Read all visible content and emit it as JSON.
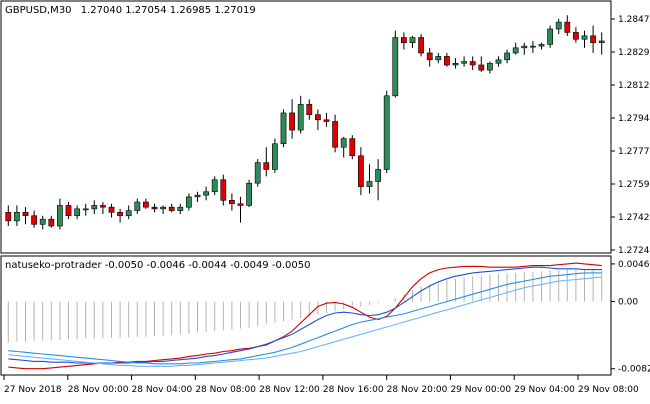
{
  "header": {
    "symbol_label": "GBPUSD,M30",
    "ohlc_label": "1.27040 1.27054 1.26985 1.27019"
  },
  "indicator": {
    "label": "natuseko-protrader -0.0050 -0.0046 -0.0044 -0.0049 -0.0050"
  },
  "colors": {
    "background": "#ffffff",
    "frame": "#000000",
    "bull_candle": "#2e8b57",
    "bear_candle": "#e00000",
    "wick": "#000000",
    "hist": "#b4b4b4",
    "line_red": "#d00000",
    "line_blue1": "#1f4fd8",
    "line_blue2": "#2a8fe0",
    "line_blue3": "#6cb4ff"
  },
  "chart_data": [
    {
      "type": "candlestick",
      "series_id": "price",
      "ylim": [
        1.2715,
        1.2858
      ],
      "y_ticks": [
        "1.28476",
        "1.28295",
        "1.28120",
        "1.27945",
        "1.27770",
        "1.27595",
        "1.27420",
        "1.27245"
      ],
      "x_ticks": [
        "27 Nov 2018",
        "28 Nov 00:00",
        "28 Nov 04:00",
        "28 Nov 08:00",
        "28 Nov 12:00",
        "28 Nov 16:00",
        "28 Nov 20:00",
        "29 Nov 00:00",
        "29 Nov 04:00",
        "29 Nov 08:00"
      ],
      "candles": [
        [
          1.2737,
          1.2741,
          1.2729,
          1.2732
        ],
        [
          1.2732,
          1.2741,
          1.2729,
          1.2737
        ],
        [
          1.2737,
          1.274,
          1.273,
          1.2735
        ],
        [
          1.2735,
          1.2738,
          1.2728,
          1.273
        ],
        [
          1.273,
          1.2735,
          1.2727,
          1.2733
        ],
        [
          1.2733,
          1.2735,
          1.2728,
          1.2729
        ],
        [
          1.2729,
          1.2745,
          1.2727,
          1.2741
        ],
        [
          1.2741,
          1.2743,
          1.2733,
          1.2735
        ],
        [
          1.2735,
          1.2741,
          1.2733,
          1.2739
        ],
        [
          1.2739,
          1.2742,
          1.2735,
          1.2739
        ],
        [
          1.2739,
          1.2744,
          1.2736,
          1.2741
        ],
        [
          1.2741,
          1.2743,
          1.2736,
          1.274
        ],
        [
          1.274,
          1.2742,
          1.2734,
          1.2737
        ],
        [
          1.2737,
          1.2739,
          1.2731,
          1.2735
        ],
        [
          1.2735,
          1.2741,
          1.2733,
          1.2738
        ],
        [
          1.2738,
          1.2745,
          1.2736,
          1.2743
        ],
        [
          1.2743,
          1.2745,
          1.2739,
          1.274
        ],
        [
          1.274,
          1.2742,
          1.2737,
          1.2739
        ],
        [
          1.2739,
          1.2741,
          1.2736,
          1.274
        ],
        [
          1.274,
          1.2742,
          1.2737,
          1.2738
        ],
        [
          1.2738,
          1.2742,
          1.2736,
          1.274
        ],
        [
          1.274,
          1.2748,
          1.2738,
          1.2746
        ],
        [
          1.2746,
          1.2749,
          1.2743,
          1.2747
        ],
        [
          1.2747,
          1.2752,
          1.2744,
          1.2749
        ],
        [
          1.2749,
          1.2758,
          1.2747,
          1.2756
        ],
        [
          1.2756,
          1.2759,
          1.2741,
          1.2744
        ],
        [
          1.2744,
          1.2748,
          1.2738,
          1.2742
        ],
        [
          1.2742,
          1.2746,
          1.2731,
          1.2741
        ],
        [
          1.2741,
          1.2756,
          1.274,
          1.2754
        ],
        [
          1.2754,
          1.2768,
          1.2752,
          1.2766
        ],
        [
          1.2766,
          1.2775,
          1.2758,
          1.2762
        ],
        [
          1.2762,
          1.278,
          1.276,
          1.2777
        ],
        [
          1.2777,
          1.2797,
          1.2775,
          1.2795
        ],
        [
          1.2795,
          1.2803,
          1.278,
          1.2785
        ],
        [
          1.2785,
          1.2805,
          1.2783,
          1.28
        ],
        [
          1.28,
          1.2803,
          1.2791,
          1.2794
        ],
        [
          1.2794,
          1.2797,
          1.2785,
          1.2791
        ],
        [
          1.2791,
          1.2795,
          1.2787,
          1.279
        ],
        [
          1.279,
          1.2794,
          1.2772,
          1.2775
        ],
        [
          1.2775,
          1.2781,
          1.2769,
          1.278
        ],
        [
          1.278,
          1.2782,
          1.2768,
          1.277
        ],
        [
          1.277,
          1.2775,
          1.2747,
          1.2752
        ],
        [
          1.2752,
          1.2765,
          1.2748,
          1.2755
        ],
        [
          1.2755,
          1.2768,
          1.2744,
          1.2762
        ],
        [
          1.2762,
          1.2808,
          1.276,
          1.2805
        ],
        [
          1.2805,
          1.2843,
          1.2804,
          1.2839
        ],
        [
          1.2839,
          1.2842,
          1.2832,
          1.2836
        ],
        [
          1.2836,
          1.284,
          1.2833,
          1.2839
        ],
        [
          1.2839,
          1.2841,
          1.2828,
          1.283
        ],
        [
          1.283,
          1.2833,
          1.2822,
          1.2826
        ],
        [
          1.2826,
          1.283,
          1.2824,
          1.2828
        ],
        [
          1.2828,
          1.283,
          1.2822,
          1.2823
        ],
        [
          1.2823,
          1.2827,
          1.2821,
          1.2824
        ],
        [
          1.2824,
          1.2828,
          1.2822,
          1.2825
        ],
        [
          1.2825,
          1.2828,
          1.282,
          1.2823
        ],
        [
          1.2823,
          1.2828,
          1.2819,
          1.282
        ],
        [
          1.282,
          1.2825,
          1.2818,
          1.2824
        ],
        [
          1.2824,
          1.2828,
          1.2822,
          1.2826
        ],
        [
          1.2826,
          1.2832,
          1.2824,
          1.283
        ],
        [
          1.283,
          1.2836,
          1.2829,
          1.2833
        ],
        [
          1.2833,
          1.2836,
          1.2829,
          1.2834
        ],
        [
          1.2834,
          1.2837,
          1.283,
          1.2834
        ],
        [
          1.2834,
          1.2836,
          1.2832,
          1.2835
        ],
        [
          1.2835,
          1.2846,
          1.2833,
          1.2844
        ],
        [
          1.2844,
          1.285,
          1.2841,
          1.2848
        ],
        [
          1.2848,
          1.2852,
          1.284,
          1.2842
        ],
        [
          1.2842,
          1.2845,
          1.2836,
          1.2838
        ],
        [
          1.2838,
          1.2843,
          1.2833,
          1.284
        ],
        [
          1.284,
          1.2846,
          1.283,
          1.2836
        ],
        [
          1.2836,
          1.2842,
          1.2829,
          1.2837
        ]
      ]
    },
    {
      "type": "line",
      "series_id": "indicator",
      "ylim": [
        -0.0086,
        0.0052
      ],
      "y_ticks": [
        {
          "value": 0.0046,
          "label": "0.0046"
        },
        {
          "value": 0.0,
          "label": "0.00"
        },
        {
          "value": -0.0082,
          "label": "-0.0082"
        }
      ],
      "histogram": [
        -0.005,
        -0.0049,
        -0.0049,
        -0.0048,
        -0.0048,
        -0.0047,
        -0.0047,
        -0.0046,
        -0.0046,
        -0.0045,
        -0.0045,
        -0.0045,
        -0.0044,
        -0.0044,
        -0.0044,
        -0.0043,
        -0.0043,
        -0.0042,
        -0.0042,
        -0.0041,
        -0.004,
        -0.0039,
        -0.0038,
        -0.0037,
        -0.0036,
        -0.0035,
        -0.0034,
        -0.0033,
        -0.0032,
        -0.003,
        -0.0028,
        -0.0026,
        -0.0024,
        -0.0022,
        -0.002,
        -0.0018,
        -0.0016,
        -0.0014,
        -0.0012,
        -0.001,
        -0.0008,
        -0.0006,
        -0.0004,
        -0.0002,
        0.0,
        0.0004,
        0.0009,
        0.0014,
        0.0018,
        0.0021,
        0.0024,
        0.0026,
        0.0028,
        0.003,
        0.0031,
        0.0032,
        0.0033,
        0.0034,
        0.0035,
        0.0035,
        0.0036,
        0.0036,
        0.0037,
        0.0038,
        0.0038,
        0.0039,
        0.0039,
        0.004,
        0.004,
        0.004
      ],
      "series": [
        {
          "color_key": "line_red",
          "values": [
            -0.008,
            -0.0081,
            -0.0082,
            -0.0082,
            -0.0082,
            -0.0081,
            -0.008,
            -0.0079,
            -0.0078,
            -0.0077,
            -0.0076,
            -0.0075,
            -0.0075,
            -0.0074,
            -0.0074,
            -0.0073,
            -0.0073,
            -0.0072,
            -0.0071,
            -0.007,
            -0.0069,
            -0.0067,
            -0.0066,
            -0.0064,
            -0.0063,
            -0.0061,
            -0.006,
            -0.0058,
            -0.0057,
            -0.0055,
            -0.0053,
            -0.0048,
            -0.0043,
            -0.0036,
            -0.0026,
            -0.0016,
            -0.0006,
            -0.0002,
            -0.0001,
            -0.0003,
            -0.0007,
            -0.0013,
            -0.0019,
            -0.0022,
            -0.0018,
            -0.0008,
            0.0005,
            0.0018,
            0.0028,
            0.0035,
            0.0039,
            0.0041,
            0.0042,
            0.0043,
            0.0043,
            0.0043,
            0.0042,
            0.0042,
            0.0042,
            0.0042,
            0.0043,
            0.0044,
            0.0044,
            0.0044,
            0.0045,
            0.0046,
            0.0047,
            0.0046,
            0.0045,
            0.0044
          ]
        },
        {
          "color_key": "line_blue1",
          "values": [
            -0.007,
            -0.0071,
            -0.0072,
            -0.0073,
            -0.0073,
            -0.0074,
            -0.0074,
            -0.0074,
            -0.0075,
            -0.0075,
            -0.0075,
            -0.0075,
            -0.0075,
            -0.0075,
            -0.0075,
            -0.0074,
            -0.0074,
            -0.0073,
            -0.0073,
            -0.0072,
            -0.0071,
            -0.007,
            -0.0069,
            -0.0067,
            -0.0066,
            -0.0064,
            -0.0062,
            -0.006,
            -0.0058,
            -0.0055,
            -0.0052,
            -0.0048,
            -0.0044,
            -0.004,
            -0.0034,
            -0.0028,
            -0.0022,
            -0.0017,
            -0.0014,
            -0.0013,
            -0.0014,
            -0.0016,
            -0.0017,
            -0.0016,
            -0.0013,
            -0.0008,
            -0.0001,
            0.0006,
            0.0013,
            0.0019,
            0.0024,
            0.0028,
            0.0031,
            0.0033,
            0.0035,
            0.0036,
            0.0037,
            0.0038,
            0.0039,
            0.004,
            0.0041,
            0.0042,
            0.0042,
            0.0041,
            0.004,
            0.004,
            0.004,
            0.0039,
            0.0039,
            0.0039
          ]
        },
        {
          "color_key": "line_blue2",
          "values": [
            -0.006,
            -0.0061,
            -0.0062,
            -0.0063,
            -0.0064,
            -0.0065,
            -0.0066,
            -0.0067,
            -0.0068,
            -0.0069,
            -0.007,
            -0.0071,
            -0.0072,
            -0.0073,
            -0.0074,
            -0.0075,
            -0.0075,
            -0.0076,
            -0.0076,
            -0.0076,
            -0.0076,
            -0.0075,
            -0.0075,
            -0.0074,
            -0.0073,
            -0.0072,
            -0.0071,
            -0.007,
            -0.0068,
            -0.0066,
            -0.0064,
            -0.0062,
            -0.0059,
            -0.0056,
            -0.0052,
            -0.0048,
            -0.0044,
            -0.004,
            -0.0036,
            -0.0032,
            -0.0028,
            -0.0025,
            -0.0023,
            -0.0021,
            -0.0019,
            -0.0017,
            -0.0015,
            -0.0012,
            -0.0009,
            -0.0006,
            -0.0003,
            0.0,
            0.0003,
            0.0006,
            0.0009,
            0.0012,
            0.0015,
            0.0018,
            0.0021,
            0.0023,
            0.0025,
            0.0027,
            0.0029,
            0.0031,
            0.0032,
            0.0033,
            0.0034,
            0.0035,
            0.0035,
            0.0035
          ]
        },
        {
          "color_key": "line_blue3",
          "values": [
            -0.0065,
            -0.0066,
            -0.0067,
            -0.0068,
            -0.0069,
            -0.007,
            -0.0071,
            -0.0072,
            -0.0073,
            -0.0074,
            -0.0075,
            -0.0076,
            -0.0077,
            -0.0078,
            -0.0078,
            -0.0079,
            -0.0079,
            -0.0079,
            -0.0079,
            -0.0079,
            -0.0078,
            -0.0078,
            -0.0077,
            -0.0076,
            -0.0075,
            -0.0074,
            -0.0073,
            -0.0072,
            -0.0071,
            -0.007,
            -0.0069,
            -0.0067,
            -0.0065,
            -0.0063,
            -0.0061,
            -0.0058,
            -0.0055,
            -0.0052,
            -0.0049,
            -0.0046,
            -0.0043,
            -0.004,
            -0.0037,
            -0.0034,
            -0.0031,
            -0.0028,
            -0.0025,
            -0.0022,
            -0.0019,
            -0.0016,
            -0.0013,
            -0.001,
            -0.0007,
            -0.0004,
            -0.0001,
            0.0002,
            0.0005,
            0.0008,
            0.0011,
            0.0014,
            0.0017,
            0.0019,
            0.0021,
            0.0023,
            0.0025,
            0.0026,
            0.0027,
            0.0028,
            0.0029,
            0.003
          ]
        }
      ]
    }
  ]
}
